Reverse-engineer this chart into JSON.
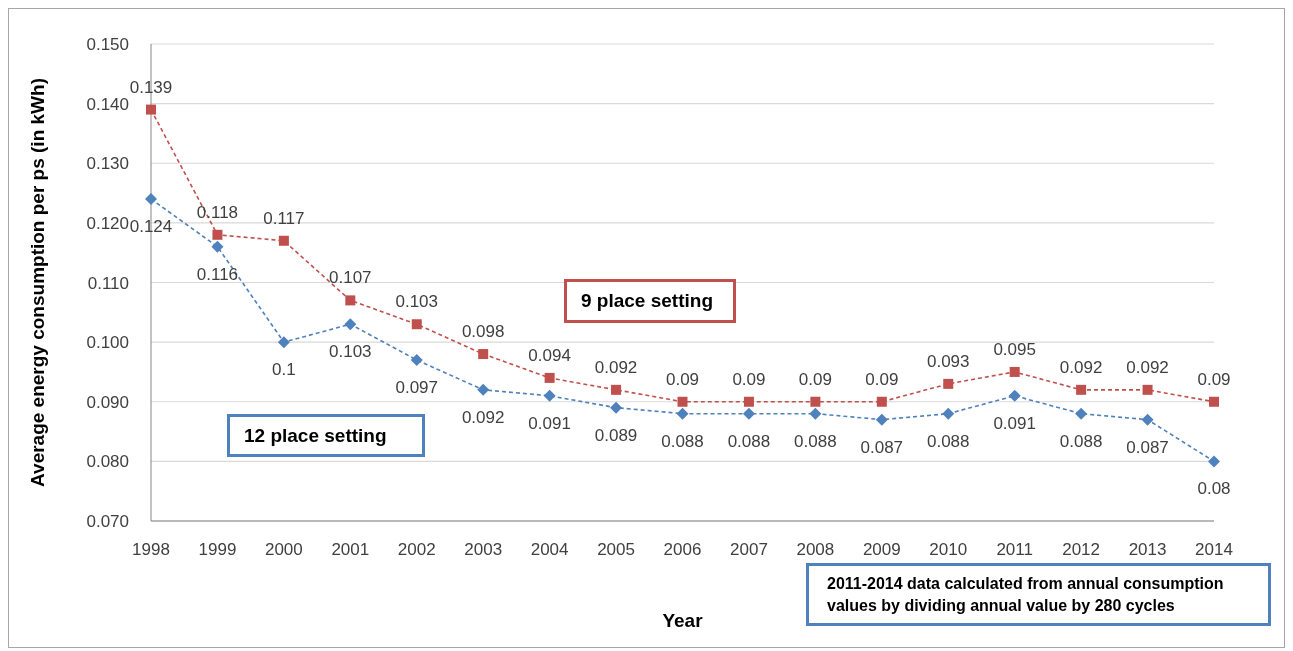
{
  "chart_data": {
    "type": "line",
    "xlabel": "Year",
    "ylabel": "Average energy consumption per ps (in kWh)",
    "categories": [
      "1998",
      "1999",
      "2000",
      "2001",
      "2002",
      "2003",
      "2004",
      "2005",
      "2006",
      "2007",
      "2008",
      "2009",
      "2010",
      "2011",
      "2012",
      "2013",
      "2014"
    ],
    "series": [
      {
        "name": "9 place setting",
        "color": "#c0504d",
        "marker": "square",
        "values": [
          0.139,
          0.118,
          0.117,
          0.107,
          0.103,
          0.098,
          0.094,
          0.092,
          0.09,
          0.09,
          0.09,
          0.09,
          0.093,
          0.095,
          0.092,
          0.092,
          0.09
        ]
      },
      {
        "name": "12 place setting",
        "color": "#4f81bd",
        "marker": "diamond",
        "values": [
          0.124,
          0.116,
          0.1,
          0.103,
          0.097,
          0.092,
          0.091,
          0.089,
          0.088,
          0.088,
          0.088,
          0.087,
          0.088,
          0.091,
          0.088,
          0.087,
          0.08
        ]
      }
    ],
    "ylim": [
      0.07,
      0.15
    ],
    "yticks": [
      {
        "value": 0.07,
        "label": "0.070"
      },
      {
        "value": 0.08,
        "label": "0.080"
      },
      {
        "value": 0.09,
        "label": "0.090"
      },
      {
        "value": 0.1,
        "label": "0.100"
      },
      {
        "value": 0.11,
        "label": "0.110"
      },
      {
        "value": 0.12,
        "label": "0.120"
      },
      {
        "value": 0.13,
        "label": "0.130"
      },
      {
        "value": 0.14,
        "label": "0.140"
      },
      {
        "value": 0.15,
        "label": "0.150"
      }
    ],
    "grid": "y",
    "line_style": "dashed",
    "data_labels": true,
    "annotations": [
      "2011-2014 data calculated from annual consumption values by dividing annual value by 280 cycles"
    ]
  }
}
